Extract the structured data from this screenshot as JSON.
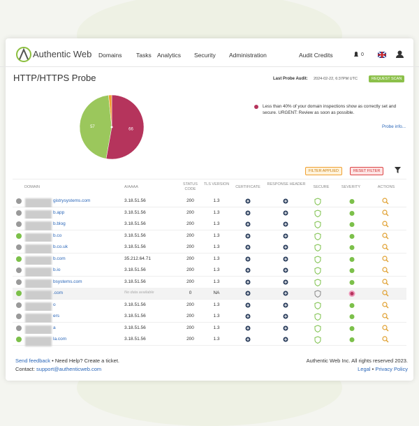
{
  "nav": {
    "brand": "Authentic Web",
    "items": [
      "Domains",
      "Tasks",
      "Analytics",
      "Security",
      "Administration"
    ],
    "audit_credits": "Audit Credits",
    "notifications": "0"
  },
  "header": {
    "title": "HTTP/HTTPS Probe",
    "last_probe_label": "Last Probe Audit:",
    "last_probe_time": "2024-02-22, 6:37PM UTC",
    "request_scan": "REQUEST SCAN"
  },
  "pie": {
    "values": [
      66,
      57,
      2
    ],
    "colors": [
      "#b5345c",
      "#9bc75c",
      "#f0a030"
    ]
  },
  "summary": {
    "text": "Less than 40% of your domain inspections show as correctly set and secure. URGENT: Review as soon as possible.",
    "probe_info": "Probe info..."
  },
  "filters": {
    "applied": "FILTER APPLIED",
    "reset": "RESET FILTER"
  },
  "table": {
    "columns": [
      "Domain",
      "A/AAAA",
      "Status Code",
      "TLS Version",
      "Certificate",
      "Response Header",
      "Secure",
      "Severity",
      "Actions"
    ],
    "rows": [
      {
        "domain": "gistrysystems.com",
        "ip": "3.18.51.56",
        "status": "200",
        "tls": "1.3",
        "severity_color": "#7cc04a"
      },
      {
        "domain": "b.app",
        "ip": "3.18.51.56",
        "status": "200",
        "tls": "1.3",
        "severity_color": "#7cc04a"
      },
      {
        "domain": "b.blog",
        "ip": "3.18.51.56",
        "status": "200",
        "tls": "1.3",
        "severity_color": "#7cc04a"
      },
      {
        "domain": "b.co",
        "ip": "3.18.51.56",
        "status": "200",
        "tls": "1.3",
        "severity_color": "#7cc04a"
      },
      {
        "domain": "b.co.uk",
        "ip": "3.18.51.56",
        "status": "200",
        "tls": "1.3",
        "severity_color": "#7cc04a"
      },
      {
        "domain": "b.com",
        "ip": "35.212.64.71",
        "status": "200",
        "tls": "1.3",
        "severity_color": "#7cc04a"
      },
      {
        "domain": "b.io",
        "ip": "3.18.51.56",
        "status": "200",
        "tls": "1.3",
        "severity_color": "#7cc04a"
      },
      {
        "domain": "bsystems.com",
        "ip": "3.18.51.56",
        "status": "200",
        "tls": "1.3",
        "severity_color": "#7cc04a"
      },
      {
        "domain": ".com",
        "ip": "No data available",
        "status": "0",
        "tls": "NA",
        "severity_color": "#b5345c"
      },
      {
        "domain": "o",
        "ip": "3.18.51.56",
        "status": "200",
        "tls": "1.3",
        "severity_color": "#7cc04a"
      },
      {
        "domain": "ers",
        "ip": "3.18.51.56",
        "status": "200",
        "tls": "1.3",
        "severity_color": "#7cc04a"
      },
      {
        "domain": "a",
        "ip": "3.18.51.56",
        "status": "200",
        "tls": "1.3",
        "severity_color": "#7cc04a"
      },
      {
        "domain": "la.com",
        "ip": "3.18.51.56",
        "status": "200",
        "tls": "1.3",
        "severity_color": "#7cc04a"
      }
    ]
  },
  "footer": {
    "feedback": "Send feedback",
    "sep": "•",
    "help": "Need Help? Create a ticket.",
    "contact_label": "Contact:",
    "email": "support@authenticweb.com",
    "copyright": "Authentic Web Inc. All rights reserved 2023.",
    "legal": "Legal",
    "privacy": "Privacy Policy"
  }
}
